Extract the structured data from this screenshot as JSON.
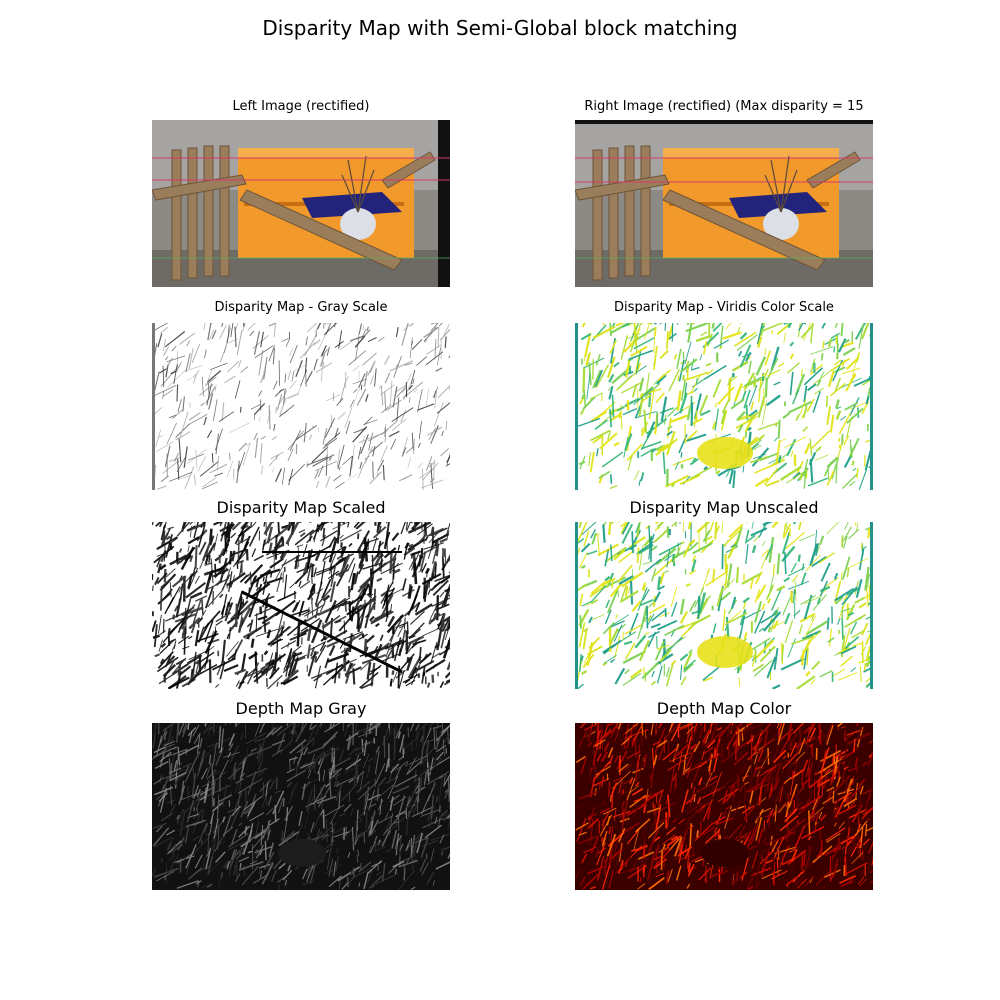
{
  "figure": {
    "title": "Disparity Map with Semi-Global block matching",
    "panels": [
      {
        "id": "left-rectified",
        "title": "Left Image (rectified)",
        "image": "photo of orange chest, wooden folding chairs and white vase with branches"
      },
      {
        "id": "right-rectified",
        "title": "Right Image (rectified) (Max disparity = 15",
        "image": "same scene from right camera with epipolar lines"
      },
      {
        "id": "disparity-gray",
        "title": "Disparity Map - Gray Scale",
        "image": "sparse gray disparity on white"
      },
      {
        "id": "disparity-viridis",
        "title": "Disparity Map - Viridis Color Scale",
        "image": "sparse yellow-green disparity on white"
      },
      {
        "id": "disparity-scaled",
        "title": "Disparity Map Scaled",
        "image": "high-contrast black and white edge texture"
      },
      {
        "id": "disparity-unscaled",
        "title": "Disparity Map Unscaled",
        "image": "sparse yellow-green disparity on white"
      },
      {
        "id": "depth-gray",
        "title": "Depth Map Gray",
        "image": "dark gray edge-like depth texture"
      },
      {
        "id": "depth-color",
        "title": "Depth Map Color",
        "image": "dark red hot colormap depth texture"
      }
    ]
  }
}
